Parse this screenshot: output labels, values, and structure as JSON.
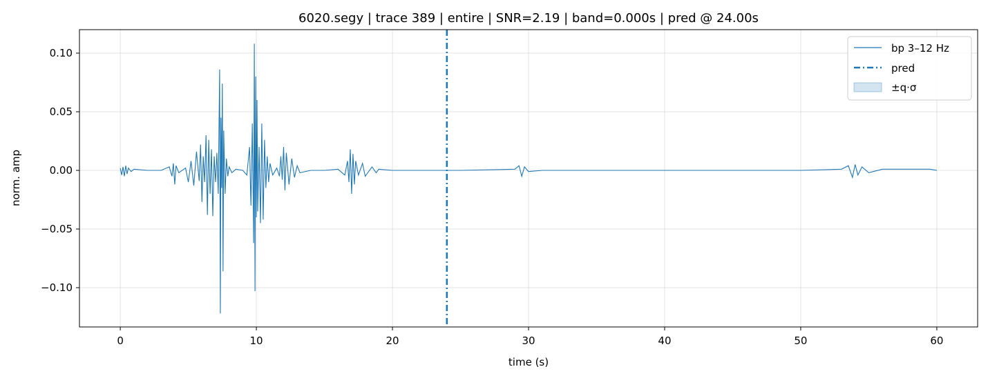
{
  "chart_data": {
    "type": "line",
    "title": "6020.segy | trace 389 | entire | SNR=2.19 | band=0.000s | pred @ 24.00s",
    "xlabel": "time (s)",
    "ylabel": "norm. amp",
    "xlim": [
      -3,
      63
    ],
    "ylim": [
      -0.1335,
      0.12
    ],
    "xticks": [
      0,
      10,
      20,
      30,
      40,
      50,
      60
    ],
    "xtick_labels": [
      "0",
      "10",
      "20",
      "30",
      "40",
      "50",
      "60"
    ],
    "yticks": [
      -0.1,
      -0.05,
      0.0,
      0.05,
      0.1
    ],
    "ytick_labels": [
      "−0.10",
      "−0.05",
      "0.00",
      "0.05",
      "0.10"
    ],
    "grid": true,
    "legend_position": "top-right",
    "color": "#1f77b4",
    "series": [
      {
        "name": "bp 3–12 Hz",
        "style": "solid",
        "x": [
          0.0,
          0.1,
          0.2,
          0.3,
          0.4,
          0.5,
          0.6,
          0.8,
          1.0,
          2.0,
          3.0,
          3.6,
          3.8,
          3.9,
          4.0,
          4.1,
          4.3,
          4.8,
          5.0,
          5.2,
          5.4,
          5.6,
          5.8,
          5.9,
          6.0,
          6.1,
          6.2,
          6.3,
          6.4,
          6.5,
          6.6,
          6.7,
          6.8,
          6.9,
          7.0,
          7.1,
          7.2,
          7.3,
          7.35,
          7.4,
          7.45,
          7.5,
          7.55,
          7.6,
          7.7,
          7.8,
          7.9,
          8.0,
          8.2,
          8.5,
          9.0,
          9.3,
          9.5,
          9.6,
          9.7,
          9.8,
          9.85,
          9.9,
          9.95,
          10.0,
          10.05,
          10.1,
          10.2,
          10.3,
          10.4,
          10.5,
          10.6,
          10.7,
          10.8,
          10.9,
          11.0,
          11.2,
          11.5,
          11.7,
          11.8,
          11.9,
          12.0,
          12.1,
          12.2,
          12.4,
          12.6,
          12.8,
          13.0,
          13.2,
          14.0,
          15.0,
          16.0,
          16.5,
          16.7,
          16.8,
          16.9,
          17.0,
          17.1,
          17.2,
          17.3,
          17.5,
          17.8,
          18.0,
          18.5,
          18.8,
          19.0,
          20.0,
          25.0,
          29.0,
          29.3,
          29.5,
          29.7,
          30.0,
          31.0,
          35.0,
          40.0,
          45.0,
          50.0,
          53.0,
          53.5,
          53.8,
          54.0,
          54.2,
          54.5,
          55.0,
          56.0,
          58.0,
          59.5,
          60.0
        ],
        "y": [
          0.002,
          -0.004,
          0.003,
          -0.005,
          0.004,
          -0.003,
          0.002,
          -0.001,
          0.001,
          0.0,
          0.0,
          0.003,
          -0.005,
          0.006,
          -0.012,
          0.004,
          -0.002,
          0.002,
          -0.01,
          0.008,
          -0.013,
          0.016,
          -0.009,
          0.022,
          -0.027,
          0.012,
          -0.01,
          0.03,
          -0.038,
          0.026,
          -0.02,
          0.018,
          -0.039,
          0.012,
          -0.01,
          0.015,
          -0.02,
          0.086,
          -0.122,
          0.045,
          -0.015,
          0.074,
          -0.086,
          0.034,
          -0.02,
          0.01,
          -0.005,
          0.003,
          -0.002,
          0.001,
          0.0,
          -0.004,
          0.02,
          -0.03,
          0.04,
          -0.062,
          0.108,
          -0.103,
          0.08,
          -0.04,
          0.06,
          -0.035,
          0.02,
          -0.045,
          0.04,
          -0.042,
          0.026,
          -0.015,
          0.012,
          -0.01,
          0.006,
          -0.004,
          0.002,
          -0.005,
          0.012,
          -0.008,
          0.02,
          -0.017,
          0.015,
          -0.012,
          0.01,
          -0.006,
          0.004,
          -0.002,
          0.0,
          0.0,
          0.001,
          -0.004,
          0.008,
          -0.01,
          0.018,
          -0.02,
          0.014,
          -0.012,
          0.008,
          -0.004,
          0.006,
          -0.005,
          0.003,
          -0.002,
          0.001,
          0.0,
          0.0,
          0.001,
          0.004,
          -0.005,
          0.003,
          -0.001,
          0.0,
          0.0,
          0.0,
          0.0,
          0.0,
          0.001,
          0.004,
          -0.006,
          0.005,
          -0.004,
          0.003,
          -0.002,
          0.001,
          0.001,
          0.001,
          0.0
        ]
      },
      {
        "name": "pred",
        "style": "dashdot",
        "x_value": 24.0
      },
      {
        "name": "±q·σ",
        "style": "band",
        "band_width_s": 0.0
      }
    ]
  }
}
